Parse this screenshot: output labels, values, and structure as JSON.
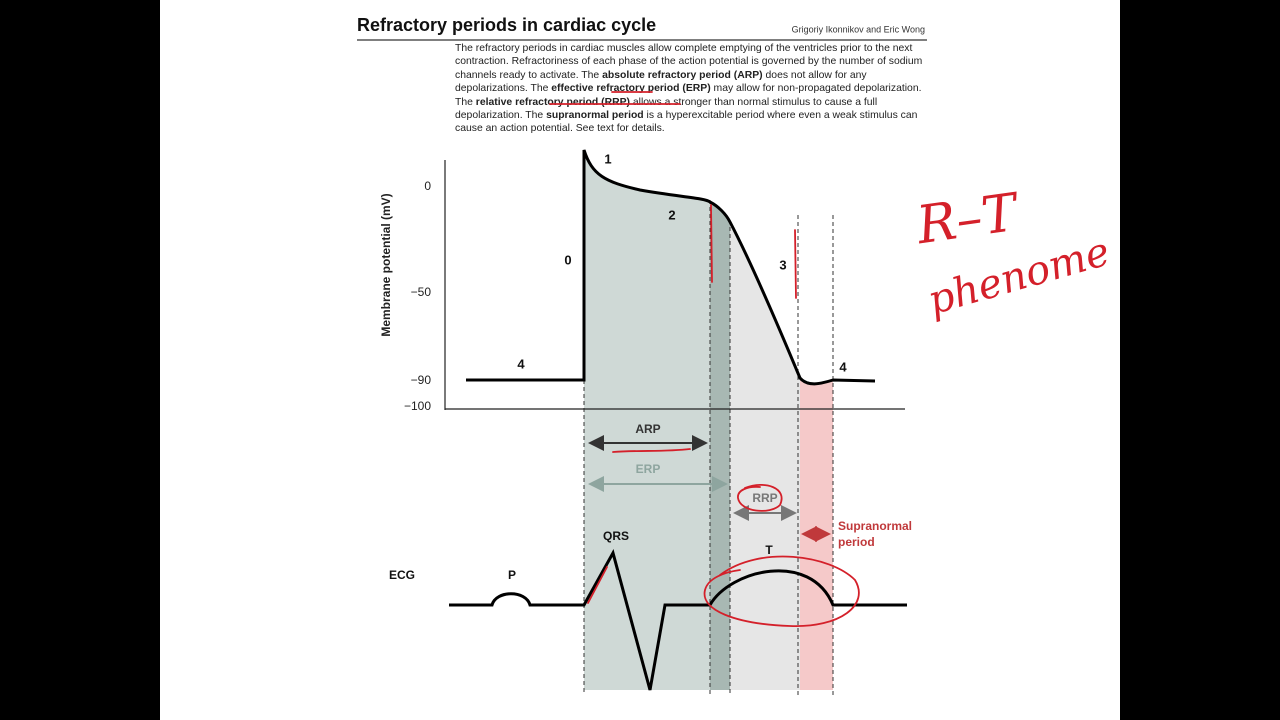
{
  "header": {
    "title": "Refractory periods in cardiac cycle",
    "authors": "Grigoriy Ikonnikov and Eric Wong"
  },
  "description": [
    "The refractory periods in cardiac muscles allow complete emptying of the ventricles prior to the next contraction. Refractoriness of each phase of the action potential is governed by the number of sodium channels ready to activate. The ",
    "absolute refractory period (ARP)",
    " does not allow for any depolarizations. The ",
    "effective refractory period (ERP)",
    " may allow for non-propagated depolarization. The ",
    "relative refractory period (RRP)",
    " allows a stronger than normal stimulus to cause a full depolarization. The ",
    "supranormal period",
    " is a hyperexcitable period where even a weak stimulus can cause an action potential. See text for details."
  ],
  "diagram": {
    "y_axis_label": "Membrane potential (mV)",
    "y_ticks": [
      "0",
      "−50",
      "−90",
      "−100"
    ],
    "phases": [
      "0",
      "1",
      "2",
      "3",
      "4",
      "4"
    ],
    "periods": {
      "arp": "ARP",
      "erp": "ERP",
      "rrp": "RRP",
      "supranormal": [
        "Supranormal",
        "period"
      ]
    },
    "ecg": {
      "label": "ECG",
      "p": "P",
      "qrs": "QRS",
      "t": "T"
    }
  },
  "handwriting": [
    "R–T",
    "phenome"
  ]
}
